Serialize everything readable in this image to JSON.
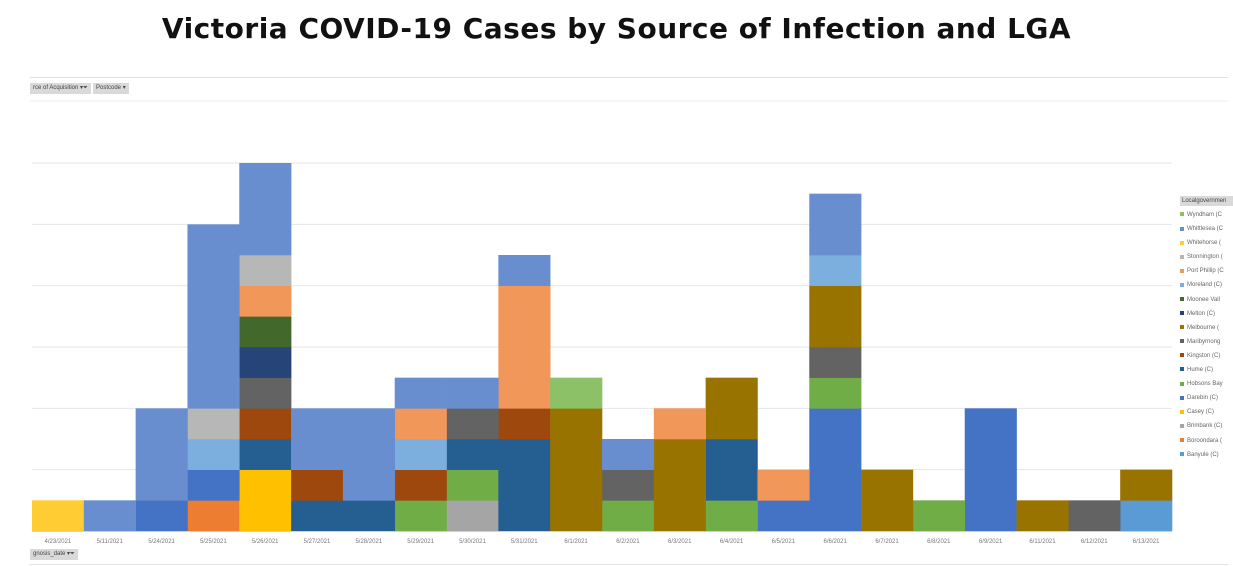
{
  "title": "Victoria COVID-19 Cases by Source of Infection and LGA",
  "filters": {
    "source_label": "rce of Acquisition",
    "postcode_label": "Postcode",
    "date_label": "gnosis_date"
  },
  "chart_data": {
    "type": "bar",
    "stacked": true,
    "title": "Victoria COVID-19 Cases by Source of Infection and LGA",
    "xlabel": "diagnosis_date",
    "ylabel": "",
    "ylim": [
      0,
      12
    ],
    "grid": true,
    "legend_title": "Localgovernmen",
    "legend_position": "right",
    "categories": [
      "4/23/2021",
      "5/11/2021",
      "5/24/2021",
      "5/25/2021",
      "5/26/2021",
      "5/27/2021",
      "5/28/2021",
      "5/29/2021",
      "5/30/2021",
      "5/31/2021",
      "6/1/2021",
      "6/2/2021",
      "6/3/2021",
      "6/4/2021",
      "6/5/2021",
      "6/6/2021",
      "6/7/2021",
      "6/8/2021",
      "6/9/2021",
      "6/11/2021",
      "6/12/2021",
      "6/13/2021"
    ],
    "series": [
      {
        "name": "Banyule (C)",
        "legend": "Banyule (C)",
        "color": "#5b9bd5",
        "values": [
          0,
          0,
          0,
          0,
          0,
          0,
          0,
          0,
          0,
          0,
          0,
          0,
          0,
          0,
          0,
          0,
          0,
          0,
          0,
          0,
          0,
          1
        ]
      },
      {
        "name": "Boroondara (C)",
        "legend": "Boroondara (",
        "color": "#ed7d31",
        "values": [
          0,
          0,
          0,
          1,
          0,
          0,
          0,
          0,
          0,
          0,
          0,
          0,
          0,
          0,
          0,
          0,
          0,
          0,
          0,
          0,
          0,
          0
        ]
      },
      {
        "name": "Brimbank (C)",
        "legend": "Brimbank (C)",
        "color": "#a5a5a5",
        "values": [
          0,
          0,
          0,
          0,
          0,
          0,
          0,
          0,
          1,
          0,
          0,
          0,
          0,
          0,
          0,
          0,
          0,
          0,
          0,
          0,
          0,
          0
        ]
      },
      {
        "name": "Casey (C)",
        "legend": "Casey (C)",
        "color": "#ffc000",
        "values": [
          0,
          0,
          0,
          0,
          2,
          0,
          0,
          0,
          0,
          0,
          0,
          0,
          0,
          0,
          0,
          0,
          0,
          0,
          0,
          0,
          0,
          0
        ]
      },
      {
        "name": "Darebin (C)",
        "legend": "Darebin (C)",
        "color": "#4472c4",
        "values": [
          0,
          0,
          1,
          1,
          0,
          0,
          0,
          0,
          0,
          0,
          0,
          0,
          0,
          0,
          1,
          4,
          0,
          0,
          4,
          0,
          0,
          0
        ]
      },
      {
        "name": "Hobsons Bay (C)",
        "legend": "Hobsons Bay",
        "color": "#70ad47",
        "values": [
          0,
          0,
          0,
          0,
          0,
          0,
          0,
          1,
          1,
          0,
          0,
          1,
          0,
          1,
          0,
          1,
          0,
          1,
          0,
          0,
          0,
          0
        ]
      },
      {
        "name": "Hume (C)",
        "legend": "Hume (C)",
        "color": "#255e91",
        "values": [
          0,
          0,
          0,
          0,
          1,
          1,
          1,
          0,
          1,
          3,
          0,
          0,
          0,
          2,
          0,
          0,
          0,
          0,
          0,
          0,
          0,
          0
        ]
      },
      {
        "name": "Kingston (C)",
        "legend": "Kingston (C)",
        "color": "#9e480e",
        "values": [
          0,
          0,
          0,
          0,
          1,
          1,
          0,
          1,
          0,
          1,
          0,
          0,
          0,
          0,
          0,
          0,
          0,
          0,
          0,
          0,
          0,
          0
        ]
      },
      {
        "name": "Maribyrnong (C)",
        "legend": "Maribyrnong",
        "color": "#636363",
        "values": [
          0,
          0,
          0,
          0,
          1,
          0,
          0,
          0,
          1,
          0,
          0,
          1,
          0,
          0,
          0,
          1,
          0,
          0,
          0,
          0,
          1,
          0
        ]
      },
      {
        "name": "Melbourne (C)",
        "legend": "Melbourne (",
        "color": "#997300",
        "values": [
          0,
          0,
          0,
          0,
          0,
          0,
          0,
          0,
          0,
          0,
          4,
          0,
          3,
          2,
          0,
          2,
          2,
          0,
          0,
          1,
          0,
          1
        ]
      },
      {
        "name": "Melton (C)",
        "legend": "Melton (C)",
        "color": "#264478",
        "values": [
          0,
          0,
          0,
          0,
          1,
          0,
          0,
          0,
          0,
          0,
          0,
          0,
          0,
          0,
          0,
          0,
          0,
          0,
          0,
          0,
          0,
          0
        ]
      },
      {
        "name": "Moonee Valley (C)",
        "legend": "Moonee Vall",
        "color": "#43682b",
        "values": [
          0,
          0,
          0,
          0,
          1,
          0,
          0,
          0,
          0,
          0,
          0,
          0,
          0,
          0,
          0,
          0,
          0,
          0,
          0,
          0,
          0,
          0
        ]
      },
      {
        "name": "Moreland (C)",
        "legend": "Moreland (C)",
        "color": "#7cafdd",
        "values": [
          0,
          0,
          0,
          1,
          0,
          0,
          0,
          1,
          0,
          0,
          0,
          0,
          0,
          0,
          0,
          1,
          0,
          0,
          0,
          0,
          0,
          0
        ]
      },
      {
        "name": "Port Phillip (C)",
        "legend": "Port Phillip (C",
        "color": "#f1975a",
        "values": [
          0,
          0,
          0,
          0,
          1,
          0,
          0,
          1,
          0,
          4,
          0,
          0,
          1,
          0,
          1,
          0,
          0,
          0,
          0,
          0,
          0,
          0
        ]
      },
      {
        "name": "Stonnington (C)",
        "legend": "Stonnington (",
        "color": "#b7b7b7",
        "values": [
          0,
          0,
          0,
          1,
          1,
          0,
          0,
          0,
          0,
          0,
          0,
          0,
          0,
          0,
          0,
          0,
          0,
          0,
          0,
          0,
          0,
          0
        ]
      },
      {
        "name": "Whitehorse (C)",
        "legend": "Whitehorse (",
        "color": "#ffcd33",
        "values": [
          1,
          0,
          0,
          0,
          0,
          0,
          0,
          0,
          0,
          0,
          0,
          0,
          0,
          0,
          0,
          0,
          0,
          0,
          0,
          0,
          0,
          0
        ]
      },
      {
        "name": "Whittlesea (C)",
        "legend": "Whittlesea (C",
        "color": "#698ed0",
        "values": [
          0,
          1,
          3,
          6,
          3,
          2,
          3,
          1,
          1,
          1,
          0,
          1,
          0,
          0,
          0,
          2,
          0,
          0,
          0,
          0,
          0,
          0
        ]
      },
      {
        "name": "Wyndham (C)",
        "legend": "Wyndham (C",
        "color": "#8cc168",
        "values": [
          0,
          0,
          0,
          0,
          0,
          0,
          0,
          0,
          0,
          0,
          1,
          0,
          0,
          0,
          0,
          0,
          0,
          0,
          0,
          0,
          0,
          0
        ]
      }
    ]
  }
}
